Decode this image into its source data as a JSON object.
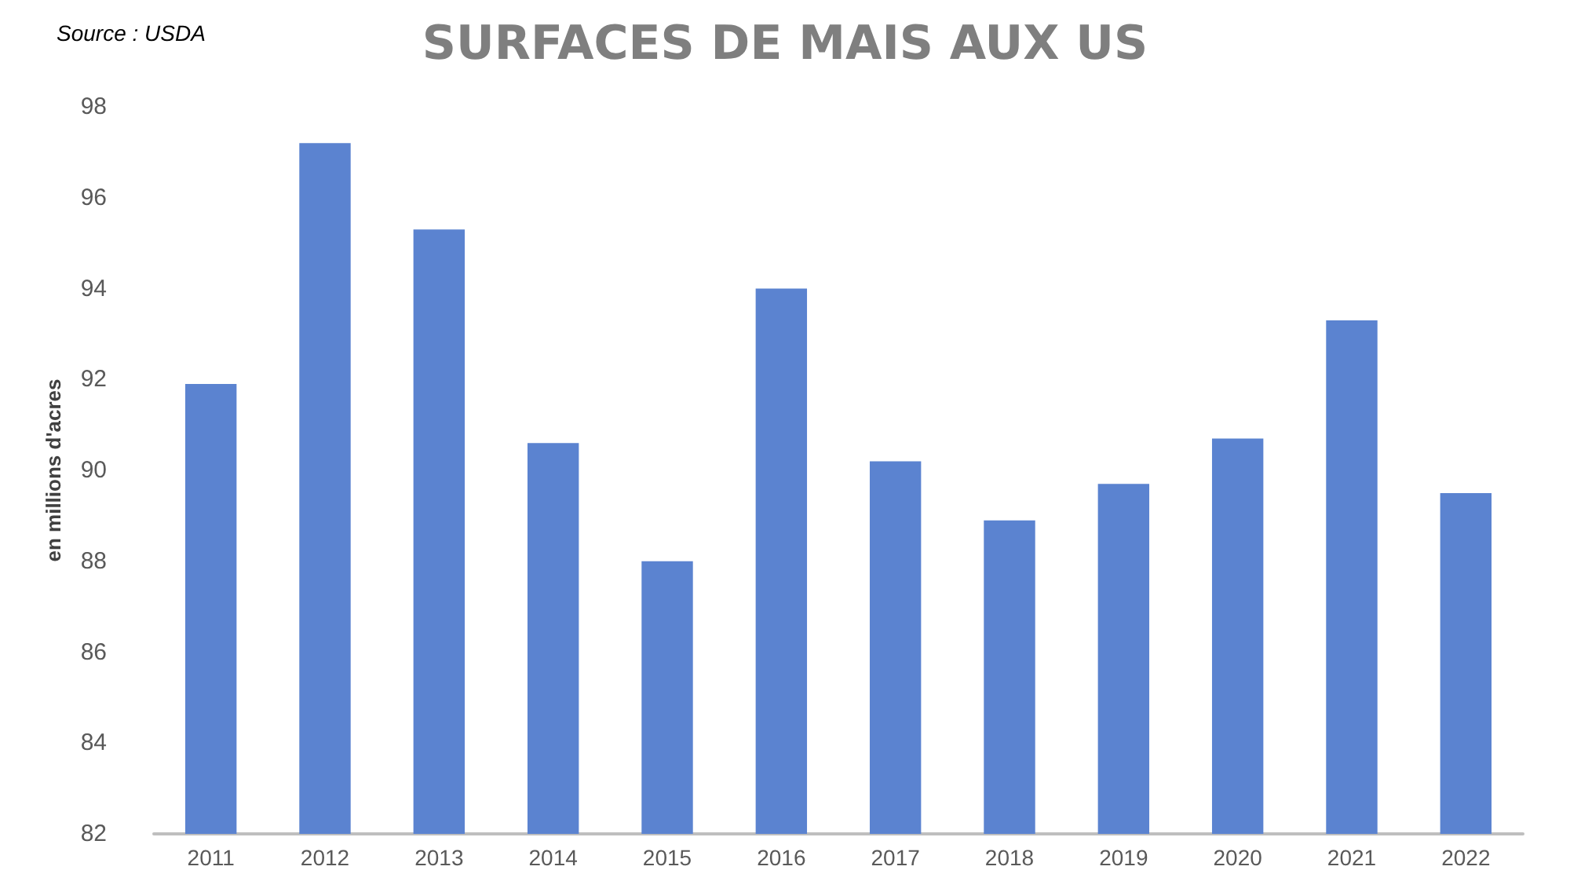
{
  "chart_data": {
    "type": "bar",
    "title": "SURFACES DE MAIS AUX US",
    "ylabel": "en millions d'acres",
    "annotations": [
      "Source : USDA"
    ],
    "categories": [
      "2011",
      "2012",
      "2013",
      "2014",
      "2015",
      "2016",
      "2017",
      "2018",
      "2019",
      "2020",
      "2021",
      "2022"
    ],
    "values": [
      91.9,
      97.2,
      95.3,
      90.6,
      88.0,
      94.0,
      90.2,
      88.9,
      89.7,
      90.7,
      93.3,
      89.5
    ],
    "color": "#5b83d0",
    "ylim": [
      82,
      98
    ],
    "yticks": [
      82,
      84,
      86,
      88,
      90,
      92,
      94,
      96,
      98
    ],
    "grid": false
  }
}
